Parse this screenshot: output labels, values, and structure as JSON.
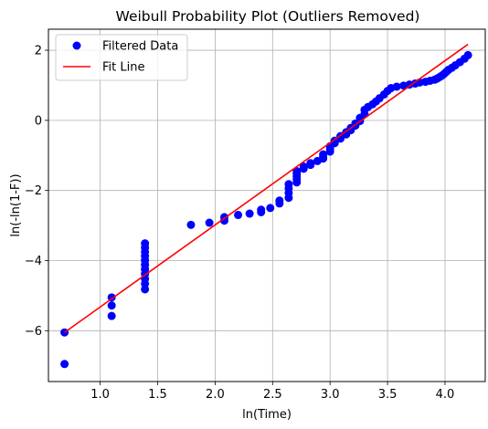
{
  "chart_data": {
    "type": "scatter",
    "title": "Weibull Probability Plot (Outliers Removed)",
    "xlabel": "ln(Time)",
    "ylabel": "ln(-ln(1-F))",
    "xlim": [
      0.55,
      4.35
    ],
    "ylim": [
      -7.45,
      2.6
    ],
    "xticks": [
      1.0,
      1.5,
      2.0,
      2.5,
      3.0,
      3.5,
      4.0
    ],
    "xtick_labels": [
      "1.0",
      "1.5",
      "2.0",
      "2.5",
      "3.0",
      "3.5",
      "4.0"
    ],
    "yticks": [
      -6,
      -4,
      -2,
      0,
      2
    ],
    "ytick_labels": [
      "−6",
      "−4",
      "−2",
      "0",
      "2"
    ],
    "grid": true,
    "legend_position": "top-left",
    "series": [
      {
        "name": "Filtered Data",
        "kind": "scatter",
        "color": "#0000ff",
        "points": [
          [
            0.69,
            -6.95
          ],
          [
            0.69,
            -6.05
          ],
          [
            1.1,
            -5.58
          ],
          [
            1.1,
            -5.28
          ],
          [
            1.1,
            -5.05
          ],
          [
            1.39,
            -4.82
          ],
          [
            1.39,
            -4.66
          ],
          [
            1.39,
            -4.52
          ],
          [
            1.39,
            -4.38
          ],
          [
            1.39,
            -4.25
          ],
          [
            1.39,
            -4.12
          ],
          [
            1.39,
            -3.99
          ],
          [
            1.39,
            -3.87
          ],
          [
            1.39,
            -3.75
          ],
          [
            1.39,
            -3.63
          ],
          [
            1.39,
            -3.51
          ],
          [
            1.79,
            -2.98
          ],
          [
            1.95,
            -2.92
          ],
          [
            2.08,
            -2.86
          ],
          [
            2.08,
            -2.76
          ],
          [
            2.2,
            -2.7
          ],
          [
            2.3,
            -2.66
          ],
          [
            2.4,
            -2.62
          ],
          [
            2.4,
            -2.55
          ],
          [
            2.48,
            -2.5
          ],
          [
            2.56,
            -2.37
          ],
          [
            2.56,
            -2.29
          ],
          [
            2.64,
            -2.21
          ],
          [
            2.64,
            -2.07
          ],
          [
            2.64,
            -1.94
          ],
          [
            2.64,
            -1.82
          ],
          [
            2.71,
            -1.77
          ],
          [
            2.71,
            -1.68
          ],
          [
            2.71,
            -1.6
          ],
          [
            2.71,
            -1.52
          ],
          [
            2.71,
            -1.45
          ],
          [
            2.77,
            -1.38
          ],
          [
            2.77,
            -1.32
          ],
          [
            2.83,
            -1.27
          ],
          [
            2.83,
            -1.22
          ],
          [
            2.89,
            -1.16
          ],
          [
            2.94,
            -1.09
          ],
          [
            2.94,
            -1.03
          ],
          [
            2.94,
            -0.97
          ],
          [
            3.0,
            -0.89
          ],
          [
            3.0,
            -0.81
          ],
          [
            3.0,
            -0.74
          ],
          [
            3.04,
            -0.65
          ],
          [
            3.04,
            -0.58
          ],
          [
            3.09,
            -0.52
          ],
          [
            3.09,
            -0.45
          ],
          [
            3.14,
            -0.4
          ],
          [
            3.14,
            -0.34
          ],
          [
            3.18,
            -0.28
          ],
          [
            3.18,
            -0.22
          ],
          [
            3.22,
            -0.15
          ],
          [
            3.22,
            -0.09
          ],
          [
            3.26,
            -0.02
          ],
          [
            3.26,
            0.07
          ],
          [
            3.3,
            0.18
          ],
          [
            3.3,
            0.3
          ],
          [
            3.33,
            0.38
          ],
          [
            3.37,
            0.46
          ],
          [
            3.4,
            0.54
          ],
          [
            3.43,
            0.63
          ],
          [
            3.47,
            0.74
          ],
          [
            3.5,
            0.84
          ],
          [
            3.53,
            0.92
          ],
          [
            3.58,
            0.96
          ],
          [
            3.64,
            0.99
          ],
          [
            3.69,
            1.02
          ],
          [
            3.74,
            1.05
          ],
          [
            3.78,
            1.08
          ],
          [
            3.83,
            1.1
          ],
          [
            3.87,
            1.13
          ],
          [
            3.91,
            1.16
          ],
          [
            3.93,
            1.19
          ],
          [
            3.95,
            1.23
          ],
          [
            3.97,
            1.27
          ],
          [
            3.99,
            1.32
          ],
          [
            4.01,
            1.38
          ],
          [
            4.03,
            1.44
          ],
          [
            4.06,
            1.5
          ],
          [
            4.09,
            1.57
          ],
          [
            4.13,
            1.66
          ],
          [
            4.17,
            1.76
          ],
          [
            4.2,
            1.86
          ]
        ]
      },
      {
        "name": "Fit Line",
        "kind": "line",
        "color": "#ff0000",
        "points": [
          [
            0.69,
            -6.05
          ],
          [
            4.2,
            2.17
          ]
        ]
      }
    ]
  }
}
